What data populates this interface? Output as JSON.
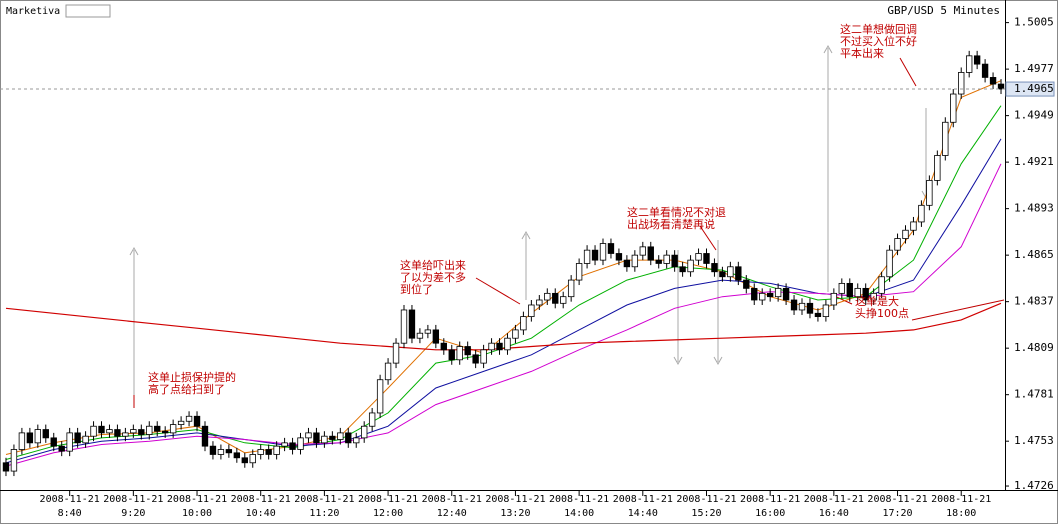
{
  "chart_data": {
    "type": "candlestick",
    "brand": "Marketiva",
    "title": "GBP/USD 5 Minutes",
    "category_date": "2008-11-21",
    "categories": [
      null,
      null,
      null,
      null,
      null,
      null,
      null,
      null,
      "8:40",
      null,
      null,
      null,
      null,
      null,
      null,
      null,
      "9:20",
      null,
      null,
      null,
      null,
      null,
      null,
      null,
      "10:00",
      null,
      null,
      null,
      null,
      null,
      null,
      null,
      "10:40",
      null,
      null,
      null,
      null,
      null,
      null,
      null,
      "11:20",
      null,
      null,
      null,
      null,
      null,
      null,
      null,
      "12:00",
      null,
      null,
      null,
      null,
      null,
      null,
      null,
      "12:40",
      null,
      null,
      null,
      null,
      null,
      null,
      null,
      "13:20",
      null,
      null,
      null,
      null,
      null,
      null,
      null,
      "14:00",
      null,
      null,
      null,
      null,
      null,
      null,
      null,
      "14:40",
      null,
      null,
      null,
      null,
      null,
      null,
      null,
      "15:20",
      null,
      null,
      null,
      null,
      null,
      null,
      null,
      "16:00",
      null,
      null,
      null,
      null,
      null,
      null,
      null,
      "16:40",
      null,
      null,
      null,
      null,
      null,
      null,
      null,
      "17:20",
      null,
      null,
      null,
      null,
      null,
      null,
      null,
      "18:00",
      null,
      null,
      null,
      null,
      null
    ],
    "open": [
      1.474,
      1.4735,
      1.4748,
      1.4758,
      1.4752,
      1.476,
      1.4755,
      1.475,
      1.4747,
      1.4758,
      1.4752,
      1.4756,
      1.4762,
      1.4758,
      1.476,
      1.4756,
      1.4758,
      1.476,
      1.4757,
      1.4762,
      1.4759,
      1.4758,
      1.4763,
      1.4765,
      1.4768,
      1.4762,
      1.475,
      1.4745,
      1.4748,
      1.4746,
      1.4743,
      1.474,
      1.4745,
      1.4748,
      1.4745,
      1.475,
      1.4752,
      1.4748,
      1.4755,
      1.4758,
      1.4752,
      1.4756,
      1.4754,
      1.4758,
      1.4752,
      1.4755,
      1.4762,
      1.477,
      1.479,
      1.48,
      1.4812,
      1.4832,
      1.4815,
      1.4818,
      1.482,
      1.4812,
      1.4808,
      1.4802,
      1.481,
      1.4805,
      1.48,
      1.4808,
      1.4812,
      1.4808,
      1.4815,
      1.482,
      1.4828,
      1.4835,
      1.4838,
      1.4842,
      1.4836,
      1.484,
      1.485,
      1.486,
      1.4868,
      1.4862,
      1.4872,
      1.4866,
      1.4862,
      1.4858,
      1.4865,
      1.487,
      1.4862,
      1.486,
      1.4865,
      1.4858,
      1.4855,
      1.4862,
      1.4866,
      1.486,
      1.4855,
      1.4852,
      1.4858,
      1.485,
      1.4845,
      1.4838,
      1.4842,
      1.484,
      1.4845,
      1.4838,
      1.4832,
      1.4836,
      1.483,
      1.4828,
      1.4835,
      1.4842,
      1.4848,
      1.484,
      1.4845,
      1.4838,
      1.4842,
      1.4852,
      1.4868,
      1.4875,
      1.488,
      1.4885,
      1.4895,
      1.491,
      1.4925,
      1.4945,
      1.4962,
      1.4975,
      1.4985,
      1.498,
      1.4972,
      1.4968
    ],
    "high": [
      1.4743,
      1.4751,
      1.4761,
      1.4761,
      1.4763,
      1.4763,
      1.4758,
      1.4753,
      1.4761,
      1.4761,
      1.4759,
      1.4765,
      1.4765,
      1.4763,
      1.4763,
      1.4761,
      1.4763,
      1.4763,
      1.4765,
      1.4765,
      1.4762,
      1.4766,
      1.4768,
      1.4771,
      1.4771,
      1.4765,
      1.4753,
      1.4751,
      1.4751,
      1.4749,
      1.4746,
      1.4748,
      1.4751,
      1.4751,
      1.4753,
      1.4755,
      1.4755,
      1.4758,
      1.4761,
      1.4761,
      1.4759,
      1.4759,
      1.4761,
      1.4761,
      1.4758,
      1.4765,
      1.4773,
      1.4793,
      1.4803,
      1.4815,
      1.4835,
      1.4835,
      1.4821,
      1.4823,
      1.4823,
      1.4815,
      1.4811,
      1.4813,
      1.4813,
      1.4808,
      1.4811,
      1.4815,
      1.4815,
      1.4818,
      1.4823,
      1.4831,
      1.4838,
      1.4841,
      1.4845,
      1.4845,
      1.4843,
      1.4853,
      1.4863,
      1.4871,
      1.4871,
      1.4875,
      1.4875,
      1.4869,
      1.4865,
      1.4868,
      1.4873,
      1.4873,
      1.4865,
      1.4868,
      1.4868,
      1.4861,
      1.4865,
      1.4869,
      1.4869,
      1.4863,
      1.4858,
      1.4861,
      1.4861,
      1.4853,
      1.4848,
      1.4845,
      1.4845,
      1.4848,
      1.4848,
      1.4841,
      1.4839,
      1.4839,
      1.4833,
      1.4838,
      1.4845,
      1.4851,
      1.4851,
      1.4848,
      1.4848,
      1.4845,
      1.4855,
      1.4871,
      1.4878,
      1.4883,
      1.4888,
      1.4898,
      1.4913,
      1.4928,
      1.4948,
      1.4965,
      1.4978,
      1.4988,
      1.4988,
      1.4983,
      1.4975,
      1.4971
    ],
    "low": [
      1.4732,
      1.4732,
      1.4745,
      1.4749,
      1.4749,
      1.4752,
      1.4747,
      1.4744,
      1.4744,
      1.4749,
      1.4749,
      1.4753,
      1.4755,
      1.4755,
      1.4753,
      1.4753,
      1.4755,
      1.4754,
      1.4754,
      1.4756,
      1.4755,
      1.4755,
      1.476,
      1.4762,
      1.4759,
      1.4747,
      1.4742,
      1.4742,
      1.4743,
      1.474,
      1.4737,
      1.4737,
      1.4742,
      1.4742,
      1.4742,
      1.4747,
      1.4745,
      1.4745,
      1.4752,
      1.4749,
      1.4749,
      1.4751,
      1.4751,
      1.4749,
      1.4749,
      1.4752,
      1.4759,
      1.4767,
      1.4787,
      1.4797,
      1.4809,
      1.4812,
      1.4812,
      1.4815,
      1.4809,
      1.4805,
      1.4799,
      1.4799,
      1.4802,
      1.4797,
      1.4797,
      1.4805,
      1.4805,
      1.4805,
      1.4812,
      1.4817,
      1.4825,
      1.4832,
      1.4835,
      1.4833,
      1.4833,
      1.4837,
      1.4847,
      1.4857,
      1.4859,
      1.4859,
      1.4863,
      1.4859,
      1.4855,
      1.4855,
      1.4862,
      1.4859,
      1.4857,
      1.4857,
      1.4855,
      1.4852,
      1.4852,
      1.4859,
      1.4857,
      1.4852,
      1.4849,
      1.4849,
      1.4847,
      1.4842,
      1.4835,
      1.4835,
      1.4837,
      1.4837,
      1.4835,
      1.4829,
      1.4829,
      1.4827,
      1.4825,
      1.4825,
      1.4832,
      1.4839,
      1.4837,
      1.4837,
      1.4835,
      1.4835,
      1.4839,
      1.4849,
      1.4865,
      1.4872,
      1.4877,
      1.4882,
      1.4892,
      1.4907,
      1.4922,
      1.4942,
      1.4959,
      1.4972,
      1.4977,
      1.4969,
      1.4965,
      1.4962
    ],
    "close": [
      1.4735,
      1.4748,
      1.4758,
      1.4752,
      1.476,
      1.4755,
      1.475,
      1.4747,
      1.4758,
      1.4752,
      1.4756,
      1.4762,
      1.4758,
      1.476,
      1.4756,
      1.4758,
      1.476,
      1.4757,
      1.4762,
      1.4759,
      1.4758,
      1.4763,
      1.4765,
      1.4768,
      1.4762,
      1.475,
      1.4745,
      1.4748,
      1.4746,
      1.4743,
      1.474,
      1.4745,
      1.4748,
      1.4745,
      1.475,
      1.4752,
      1.4748,
      1.4755,
      1.4758,
      1.4752,
      1.4756,
      1.4754,
      1.4758,
      1.4752,
      1.4755,
      1.4762,
      1.477,
      1.479,
      1.48,
      1.4812,
      1.4832,
      1.4815,
      1.4818,
      1.482,
      1.4812,
      1.4808,
      1.4802,
      1.481,
      1.4805,
      1.48,
      1.4808,
      1.4812,
      1.4808,
      1.4815,
      1.482,
      1.4828,
      1.4835,
      1.4838,
      1.4842,
      1.4836,
      1.484,
      1.485,
      1.486,
      1.4868,
      1.4862,
      1.4872,
      1.4866,
      1.4862,
      1.4858,
      1.4865,
      1.487,
      1.4862,
      1.486,
      1.4865,
      1.4858,
      1.4855,
      1.4862,
      1.4866,
      1.486,
      1.4855,
      1.4852,
      1.4858,
      1.485,
      1.4845,
      1.4838,
      1.4842,
      1.484,
      1.4845,
      1.4838,
      1.4832,
      1.4836,
      1.483,
      1.4828,
      1.4835,
      1.4842,
      1.4848,
      1.484,
      1.4845,
      1.4838,
      1.4842,
      1.4852,
      1.4868,
      1.4875,
      1.488,
      1.4885,
      1.4895,
      1.491,
      1.4925,
      1.4945,
      1.4962,
      1.4975,
      1.4985,
      1.498,
      1.4972,
      1.4968,
      1.4965
    ],
    "series": [
      {
        "color": "#e07000",
        "x": [
          0,
          6,
          12,
          18,
          24,
          30,
          36,
          42,
          48,
          54,
          60,
          66,
          72,
          78,
          84,
          90,
          96,
          102,
          108,
          114,
          120,
          125
        ],
        "values": [
          1.4745,
          1.4752,
          1.4757,
          1.4758,
          1.4762,
          1.4746,
          1.475,
          1.4756,
          1.4785,
          1.4815,
          1.4806,
          1.483,
          1.4852,
          1.4862,
          1.4862,
          1.4855,
          1.484,
          1.4832,
          1.4842,
          1.488,
          1.496,
          1.497
        ]
      },
      {
        "color": "#00b000",
        "x": [
          0,
          6,
          12,
          18,
          24,
          30,
          36,
          42,
          48,
          54,
          60,
          66,
          72,
          78,
          84,
          90,
          96,
          102,
          108,
          114,
          120,
          125
        ],
        "values": [
          1.4742,
          1.475,
          1.4755,
          1.4757,
          1.476,
          1.4752,
          1.4749,
          1.4754,
          1.477,
          1.48,
          1.4805,
          1.4815,
          1.4835,
          1.485,
          1.4858,
          1.4856,
          1.4846,
          1.4838,
          1.484,
          1.4862,
          1.492,
          1.4955
        ]
      },
      {
        "color": "#1010a0",
        "x": [
          0,
          6,
          12,
          18,
          24,
          30,
          36,
          42,
          48,
          54,
          60,
          66,
          72,
          78,
          84,
          90,
          96,
          102,
          108,
          114,
          120,
          125
        ],
        "values": [
          1.474,
          1.4748,
          1.4753,
          1.4755,
          1.4758,
          1.4754,
          1.475,
          1.4752,
          1.4762,
          1.4785,
          1.4795,
          1.4805,
          1.482,
          1.4835,
          1.4845,
          1.485,
          1.4848,
          1.4842,
          1.484,
          1.485,
          1.4895,
          1.4935
        ]
      },
      {
        "color": "#d000d0",
        "x": [
          0,
          6,
          12,
          18,
          24,
          30,
          36,
          42,
          48,
          54,
          60,
          66,
          72,
          78,
          84,
          90,
          96,
          102,
          108,
          114,
          120,
          125
        ],
        "values": [
          1.4738,
          1.4746,
          1.4751,
          1.4753,
          1.4756,
          1.4754,
          1.4751,
          1.4752,
          1.4758,
          1.4775,
          1.4785,
          1.4795,
          1.4808,
          1.482,
          1.4833,
          1.484,
          1.4843,
          1.4842,
          1.484,
          1.4843,
          1.487,
          1.492
        ]
      },
      {
        "color": "#d00000",
        "x": [
          0,
          6,
          12,
          18,
          24,
          30,
          36,
          42,
          48,
          54,
          60,
          66,
          72,
          78,
          84,
          90,
          96,
          102,
          108,
          114,
          120,
          125
        ],
        "values": [
          1.4833,
          1.483,
          1.4827,
          1.4824,
          1.4821,
          1.4818,
          1.4815,
          1.4812,
          1.481,
          1.4808,
          1.4808,
          1.481,
          1.4812,
          1.4813,
          1.4814,
          1.4815,
          1.4816,
          1.4817,
          1.4818,
          1.482,
          1.4826,
          1.4836
        ]
      }
    ],
    "last_price": 1.4965,
    "ylim": [
      1.472,
      1.5015
    ],
    "yticks": [
      1.4726,
      1.4753,
      1.4781,
      1.4809,
      1.4837,
      1.4865,
      1.4893,
      1.4921,
      1.4949,
      1.4977,
      1.5005
    ],
    "up_color": "#ffffff",
    "down_color": "#000000",
    "annotations": [
      {
        "lines": [
          "这单止损保护提的",
          "高了点给扫到了"
        ]
      },
      {
        "lines": [
          "这单给吓出来",
          "了以为差不多",
          "到位了"
        ]
      },
      {
        "lines": [
          "这二单看情况不对退",
          "出战场看清楚再说"
        ]
      },
      {
        "lines": [
          "这二单想做回调",
          "不过买入位不好",
          "平本出来"
        ]
      },
      {
        "lines": [
          "这单是大",
          "头挣100点"
        ]
      }
    ]
  }
}
